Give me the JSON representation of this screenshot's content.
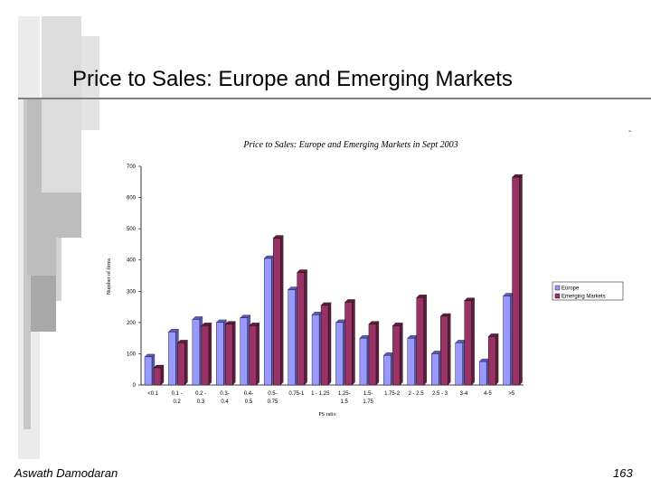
{
  "slide": {
    "title": "Price to Sales: Europe and Emerging Markets",
    "author": "Aswath Damodaran",
    "page_number": "163",
    "corner_mark": "-"
  },
  "colors": {
    "europe": "#9999ff",
    "emerging": "#993366",
    "deco_gray": "#c8c8c8",
    "deco_light": "#e6e6e6"
  },
  "chart_data": {
    "type": "bar",
    "title": "Price to Sales: Europe and Emerging Markets in Sept 2003",
    "xlabel": "PS ratio",
    "ylabel": "Number of firms",
    "ylim": [
      0,
      700
    ],
    "yticks": [
      0,
      100,
      200,
      300,
      400,
      500,
      600,
      700
    ],
    "grid": false,
    "legend_position": "right",
    "categories": [
      [
        "<0.1"
      ],
      [
        "0.1 -",
        "0.2"
      ],
      [
        "0.2 -",
        "0.3"
      ],
      [
        "0.3-",
        "0.4"
      ],
      [
        "0.4-",
        "0.5"
      ],
      [
        "0.5-",
        "0.75"
      ],
      [
        "0.75-1"
      ],
      [
        "1 - 1.25"
      ],
      [
        "1.25-",
        "1.5"
      ],
      [
        "1.5-",
        "1.75"
      ],
      [
        "1.75-2"
      ],
      [
        "2 - 2.5"
      ],
      [
        "2.5 - 3"
      ],
      [
        "3-4"
      ],
      [
        "4-5"
      ],
      [
        ">5"
      ]
    ],
    "series": [
      {
        "name": "Europe",
        "values": [
          90,
          170,
          210,
          200,
          215,
          405,
          305,
          225,
          200,
          150,
          95,
          150,
          100,
          135,
          75,
          285
        ]
      },
      {
        "name": "Emerging Markets",
        "values": [
          55,
          135,
          190,
          195,
          190,
          470,
          360,
          255,
          265,
          195,
          190,
          280,
          220,
          270,
          155,
          665
        ]
      }
    ]
  }
}
